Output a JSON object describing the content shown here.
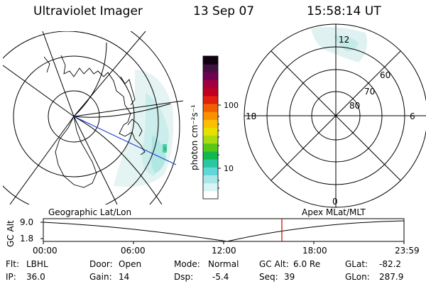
{
  "header": {
    "title": "Ultraviolet Imager",
    "date": "13 Sep 07",
    "time": "15:58:14 UT"
  },
  "colorbar": {
    "unit_label": "photon cm⁻²s⁻¹",
    "ticks": [
      "100",
      "10"
    ],
    "colors": [
      "#ffffff",
      "#d8f4f4",
      "#a8e8e8",
      "#60d8d8",
      "#28c8a0",
      "#10b850",
      "#58c818",
      "#a8dc10",
      "#e8e000",
      "#f8c000",
      "#f89000",
      "#f06000",
      "#e02010",
      "#c00020",
      "#a00040",
      "#700050",
      "#401040",
      "#100010"
    ]
  },
  "left_map": {
    "caption": "Geographic Lat/Lon"
  },
  "right_map": {
    "caption": "Apex MLat/MLT",
    "mlt_labels": {
      "top": "12",
      "left": "18",
      "right": "6",
      "bottom": "0"
    },
    "lat_labels": [
      "60",
      "70",
      "80"
    ]
  },
  "timeline": {
    "axis_label": "GC Alt",
    "y_ticks": [
      "9.0",
      "1.8"
    ],
    "x_ticks": [
      "00:00",
      "06:00",
      "12:00",
      "18:00",
      "23:59"
    ],
    "current_marker_color": "#cc0000"
  },
  "info": {
    "flt_label": "Flt:",
    "flt_value": "LBHL",
    "ip_label": "IP:",
    "ip_value": "36.0",
    "door_label": "Door:",
    "door_value": "Open",
    "gain_label": "Gain:",
    "gain_value": "14",
    "mode_label": "Mode:",
    "mode_value": "Normal",
    "dsp_label": "Dsp:",
    "dsp_value": "-5.4",
    "gcalt_label": "GC Alt:",
    "gcalt_value": "6.0 Re",
    "seq_label": "Seq:",
    "seq_value": "39",
    "glat_label": "GLat:",
    "glat_value": "-82.2",
    "glon_label": "GLon:",
    "glon_value": "287.9"
  }
}
